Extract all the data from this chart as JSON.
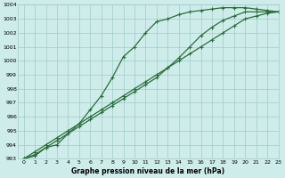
{
  "xlabel": "Graphe pression niveau de la mer (hPa)",
  "xlim": [
    -0.5,
    23
  ],
  "ylim": [
    993,
    1004
  ],
  "yticks": [
    993,
    994,
    995,
    996,
    997,
    998,
    999,
    1000,
    1001,
    1002,
    1003,
    1004
  ],
  "xticks": [
    0,
    1,
    2,
    3,
    4,
    5,
    6,
    7,
    8,
    9,
    10,
    11,
    12,
    13,
    14,
    15,
    16,
    17,
    18,
    19,
    20,
    21,
    22,
    23
  ],
  "bg_color": "#ceecea",
  "grid_color": "#a0ccc8",
  "line_color": "#2a6e3a",
  "line1_x": [
    0,
    1,
    2,
    3,
    4,
    5,
    6,
    7,
    8,
    9,
    10,
    11,
    12,
    13,
    14,
    15,
    16,
    17,
    18,
    19,
    20,
    21,
    22,
    23
  ],
  "line1_y": [
    993.0,
    993.5,
    994.0,
    994.5,
    995.0,
    995.5,
    996.0,
    996.5,
    997.0,
    997.5,
    998.0,
    998.5,
    999.0,
    999.5,
    1000.0,
    1000.5,
    1001.0,
    1001.5,
    1002.0,
    1002.5,
    1003.0,
    1003.2,
    1003.4,
    1003.5
  ],
  "line2_x": [
    0,
    1,
    2,
    3,
    4,
    5,
    6,
    7,
    8,
    9,
    10,
    11,
    12,
    13,
    14,
    15,
    16,
    17,
    18,
    19,
    20,
    21,
    22,
    23
  ],
  "line2_y": [
    993.0,
    993.3,
    993.8,
    994.3,
    994.8,
    995.3,
    995.8,
    996.3,
    996.8,
    997.3,
    997.8,
    998.3,
    998.8,
    999.5,
    1000.2,
    1001.0,
    1001.8,
    1002.4,
    1002.9,
    1003.2,
    1003.5,
    1003.5,
    1003.5,
    1003.5
  ],
  "line3_x": [
    0,
    1,
    2,
    3,
    4,
    5,
    6,
    7,
    8,
    9,
    10,
    11,
    12,
    13,
    14,
    15,
    16,
    17,
    18,
    19,
    20,
    21,
    22,
    23
  ],
  "line3_y": [
    993.0,
    993.2,
    993.8,
    994.0,
    994.8,
    995.5,
    996.5,
    997.5,
    998.8,
    1000.3,
    1001.0,
    1002.0,
    1002.8,
    1003.0,
    1003.3,
    1003.5,
    1003.6,
    1003.7,
    1003.8,
    1003.8,
    1003.8,
    1003.7,
    1003.6,
    1003.5
  ]
}
